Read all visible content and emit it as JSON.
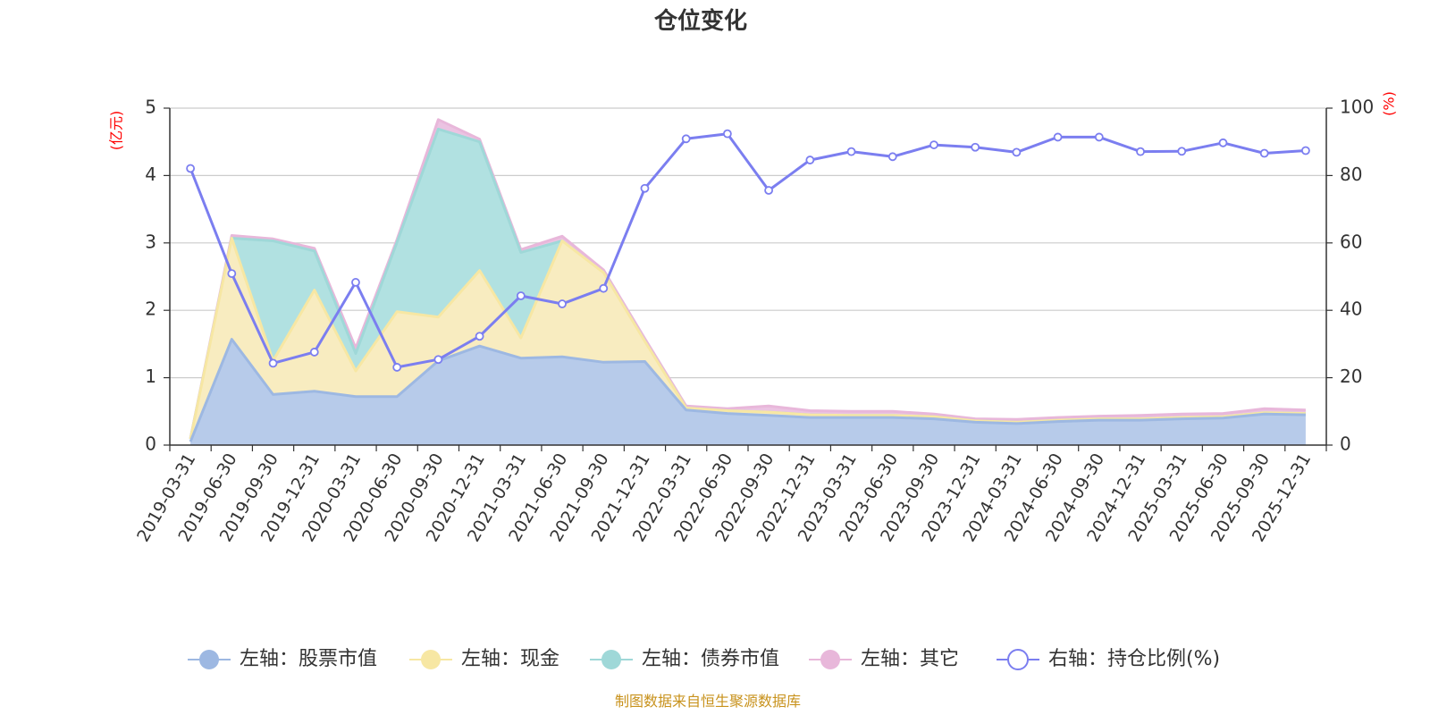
{
  "chart_data": {
    "type": "area",
    "title": "仓位变化",
    "left_unit": "(亿元)",
    "right_unit": "(%)",
    "source": "制图数据来自恒生聚源数据库",
    "left_ylim": [
      0,
      5
    ],
    "left_ticks": [
      "0",
      "1",
      "2",
      "3",
      "4",
      "5"
    ],
    "right_ylim": [
      0,
      100
    ],
    "right_ticks": [
      "0",
      "20",
      "40",
      "60",
      "80",
      "100"
    ],
    "grid": true,
    "legend_position": "bottom",
    "categories": [
      "2019-03-31",
      "2019-06-30",
      "2019-09-30",
      "2019-12-31",
      "2020-03-31",
      "2020-06-30",
      "2020-09-30",
      "2020-12-31",
      "2021-03-31",
      "2021-06-30",
      "2021-09-30",
      "2021-12-31",
      "2022-03-31",
      "2022-06-30",
      "2022-09-30",
      "2022-12-31",
      "2023-03-31",
      "2023-06-30",
      "2023-09-30",
      "2023-12-31",
      "2024-03-31",
      "2024-06-30",
      "2024-09-30",
      "2024-12-31",
      "2025-03-31",
      "2025-06-30",
      "2025-09-30",
      "2025-12-31"
    ],
    "series": [
      {
        "name": "左轴：股票市值",
        "axis": "left",
        "kind": "area",
        "color": "#9db8e2",
        "fill": "#b7cbea",
        "values": [
          0.05,
          1.57,
          0.75,
          0.8,
          0.72,
          0.72,
          1.25,
          1.47,
          1.29,
          1.31,
          1.23,
          1.24,
          0.52,
          0.47,
          0.44,
          0.41,
          0.41,
          0.41,
          0.39,
          0.34,
          0.32,
          0.35,
          0.37,
          0.37,
          0.39,
          0.4,
          0.46,
          0.45
        ]
      },
      {
        "name": "左轴：现金",
        "axis": "left",
        "kind": "area",
        "color": "#f7e7a3",
        "fill": "#f8ecc0",
        "values": [
          0.04,
          1.5,
          0.5,
          1.5,
          0.38,
          1.26,
          0.65,
          1.12,
          0.3,
          1.72,
          1.33,
          0.3,
          0.03,
          0.04,
          0.05,
          0.04,
          0.03,
          0.03,
          0.03,
          0.02,
          0.02,
          0.02,
          0.02,
          0.02,
          0.02,
          0.02,
          0.02,
          0.02
        ]
      },
      {
        "name": "左轴：债券市值",
        "axis": "left",
        "kind": "area",
        "color": "#9fd8d8",
        "fill": "#b1e1e1",
        "values": [
          0,
          0,
          1.78,
          0.58,
          0.26,
          1.03,
          2.79,
          1.91,
          1.27,
          0,
          0,
          0,
          0,
          0,
          0,
          0,
          0,
          0,
          0,
          0,
          0,
          0,
          0,
          0,
          0,
          0,
          0,
          0
        ]
      },
      {
        "name": "左轴：其它",
        "axis": "left",
        "kind": "area",
        "color": "#e8b7da",
        "fill": "#ebc3e2",
        "values": [
          0.01,
          0.04,
          0.03,
          0.04,
          0.08,
          0.04,
          0.14,
          0.04,
          0.04,
          0.07,
          0.04,
          0.04,
          0.03,
          0.03,
          0.09,
          0.06,
          0.06,
          0.06,
          0.04,
          0.03,
          0.04,
          0.04,
          0.04,
          0.05,
          0.05,
          0.05,
          0.06,
          0.05
        ]
      },
      {
        "name": "右轴：持仓比例(%)",
        "axis": "right",
        "kind": "line",
        "color": "#7b7ef0",
        "values": [
          82.1,
          50.9,
          24.3,
          27.6,
          48.3,
          23.1,
          25.4,
          32.3,
          44.3,
          41.9,
          46.5,
          76.2,
          90.9,
          92.4,
          75.6,
          84.6,
          87.1,
          85.6,
          89.1,
          88.4,
          86.9,
          91.4,
          91.4,
          87.1,
          87.2,
          89.7,
          86.6,
          87.4
        ]
      }
    ]
  }
}
